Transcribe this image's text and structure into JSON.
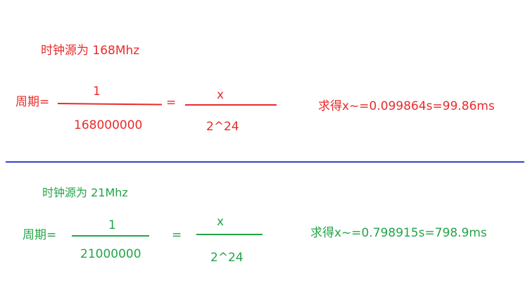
{
  "section_top": {
    "title": "时钟源为 168Mhz",
    "period_label": "周期=",
    "numerator_left": "1",
    "denominator_left": "168000000",
    "equals": "=",
    "numerator_right": "x",
    "denominator_right": "2^24",
    "result": "求得x~=0.099864s=99.86ms",
    "color": "#ea2b2b"
  },
  "section_bottom": {
    "title": "时钟源为 21Mhz",
    "period_label": "周期=",
    "numerator_left": "1",
    "denominator_left": "21000000",
    "equals": "=",
    "numerator_right": "x",
    "denominator_right": "2^24",
    "result": "求得x~=0.798915s=798.9ms",
    "color": "#23a548"
  },
  "divider_color": "#3344cc"
}
